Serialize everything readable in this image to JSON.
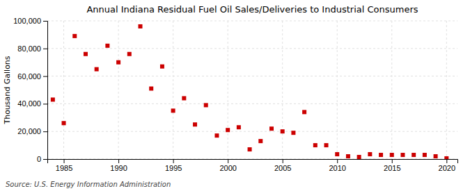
{
  "chart_data": {
    "type": "scatter",
    "title": "Annual Indiana Residual Fuel Oil Sales/Deliveries to Industrial Consumers",
    "y_label": "Thousand Gallons",
    "source": "Source: U.S. Energy Information Administration",
    "x": [
      1984,
      1985,
      1986,
      1987,
      1988,
      1989,
      1990,
      1991,
      1992,
      1993,
      1994,
      1995,
      1996,
      1997,
      1998,
      1999,
      2000,
      2001,
      2002,
      2003,
      2004,
      2005,
      2006,
      2007,
      2008,
      2009,
      2010,
      2011,
      2012,
      2013,
      2014,
      2015,
      2016,
      2017,
      2018,
      2019,
      2020
    ],
    "values": [
      43000,
      26000,
      89000,
      76000,
      65000,
      82000,
      70000,
      76000,
      96000,
      51000,
      67000,
      35000,
      44000,
      25000,
      39000,
      17000,
      21000,
      23000,
      7000,
      13000,
      22000,
      20000,
      19000,
      34000,
      10000,
      10000,
      3500,
      2000,
      1500,
      3500,
      3000,
      3000,
      3000,
      3000,
      3000,
      2000,
      500
    ],
    "color": "#cc0000",
    "marker": "square",
    "xlim": [
      1983.5,
      2021
    ],
    "xticks": [
      1985,
      1990,
      1995,
      2000,
      2005,
      2010,
      2015,
      2020
    ],
    "ylim": [
      0,
      100000
    ],
    "yticks": [
      0,
      {
        "value": 20000,
        "label": "20,000"
      },
      {
        "value": 40000,
        "label": "40,000"
      },
      {
        "value": 60000,
        "label": "60,000"
      },
      {
        "value": 80000,
        "label": "80,000"
      },
      {
        "value": 100000,
        "label": "100,000"
      }
    ],
    "grid": true
  }
}
